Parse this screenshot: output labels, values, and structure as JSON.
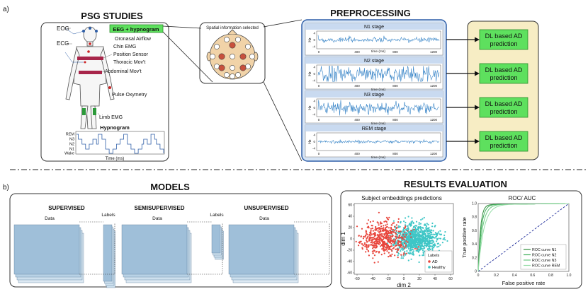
{
  "panel_labels": {
    "a": "a)",
    "b": "b)"
  },
  "psg": {
    "title": "PSG STUDIES",
    "eog": "EOG",
    "ecg": "ECG",
    "eeg_box": "EEG + hypnogram",
    "signals": [
      "Oronasal Airflow",
      "Chin EMG",
      "Position Sensor",
      "Thoracic Mov't",
      "Abdominal Mov't",
      "Pulse Oxymetry",
      "Limb EMG"
    ],
    "hypnogram": {
      "title": "Hypnogram",
      "stages": [
        "REM",
        "N3",
        "N2",
        "N1",
        "Wake"
      ],
      "xlabel": "Time (ms)"
    }
  },
  "spatial": {
    "title": "Spatial information selected"
  },
  "preprocessing": {
    "title": "PREPROCESSING",
    "yunit": "Hz",
    "yticks": [
      "4",
      "0",
      "-4"
    ],
    "xticks": [
      "0",
      "400",
      "800",
      "1200"
    ],
    "xlabel_first": "time (ms)",
    "xlabel": "time (ms)",
    "stages": [
      "N1 stage",
      "N2 stage",
      "N3 stage",
      "REM stage"
    ]
  },
  "prediction": {
    "label_line1": "DL based AD",
    "label_line2": "prediction"
  },
  "models": {
    "title": "MODELS",
    "supervised": {
      "title": "SUPERVISED",
      "data": "Data",
      "labels": "Labels"
    },
    "semisupervised": {
      "title": "SEMISUPERVISED",
      "data": "Data",
      "labels": "Labels"
    },
    "unsupervised": {
      "title": "UNSUPERVISED",
      "data": "Data"
    }
  },
  "results": {
    "title": "RESULTS EVALUATION",
    "scatter": {
      "title": "Subject embeddings predictions",
      "xlabel": "dim 2",
      "ylabel": "dim 1",
      "xticks": [
        "-60",
        "-40",
        "-20",
        "0",
        "20",
        "40",
        "60"
      ],
      "yticks": [
        "60",
        "40",
        "20",
        "0",
        "-20",
        "-40",
        "-60"
      ],
      "legend_title": "Labels",
      "legend": [
        {
          "name": "AD",
          "color": "#e8453c"
        },
        {
          "name": "Healthy",
          "color": "#3fc6c6"
        }
      ]
    },
    "roc": {
      "title": "ROC/ AUC",
      "xlabel": "False positive rate",
      "ylabel": "True positive rate",
      "xticks": [
        "0",
        "0.2",
        "0.4",
        "0.6",
        "0.8",
        "1.0"
      ],
      "yticks": [
        "1.0",
        "0.8",
        "0.6",
        "0.4",
        "0.2",
        "0"
      ],
      "legend": [
        "ROC curve N1",
        "ROC curve N2",
        "ROC curve N3",
        "ROC curve REM"
      ]
    }
  },
  "colors": {
    "accent_blue": "#2f5fa8",
    "signal_blue": "#3a86c8",
    "green_box": "#5ee05e",
    "panel_yellow": "#f7edc4",
    "data_blue": "#9fbfd9"
  }
}
